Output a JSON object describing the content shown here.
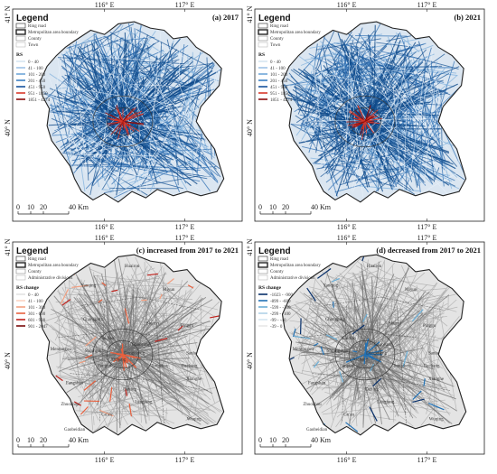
{
  "panels": [
    {
      "id": "a",
      "title": "(a) 2017",
      "style": "blue",
      "legend": {
        "title": "Legend",
        "base": [
          "Ring road",
          "Metropolitan area boundary",
          "County",
          "Town"
        ],
        "class_title": "RS",
        "classes": [
          {
            "label": "0 - 40",
            "color": "#d6e4f0"
          },
          {
            "label": "41 - 100",
            "color": "#9fc3e6"
          },
          {
            "label": "101 - 200",
            "color": "#6fa6d8"
          },
          {
            "label": "201 - 450",
            "color": "#3a7fc2"
          },
          {
            "label": "451 - 950",
            "color": "#17539c"
          },
          {
            "label": "951 - 1850",
            "color": "#d9392b"
          },
          {
            "label": "1851 - 4274",
            "color": "#8b0d0d"
          }
        ]
      },
      "scale": {
        "labels": [
          "0",
          "10",
          "20",
          "40 Km"
        ]
      },
      "lon_ticks": [
        "116° E",
        "117° E"
      ],
      "lat_ticks": [
        "41° N",
        "40° N"
      ],
      "places": []
    },
    {
      "id": "b",
      "title": "(b) 2021",
      "style": "blue",
      "legend": {
        "title": "Legend",
        "base": [
          "Ring road",
          "Metropolitan area boundary",
          "County",
          "Town"
        ],
        "class_title": "RS",
        "classes": [
          {
            "label": "0 - 40",
            "color": "#d6e4f0"
          },
          {
            "label": "41 - 100",
            "color": "#9fc3e6"
          },
          {
            "label": "101 - 200",
            "color": "#6fa6d8"
          },
          {
            "label": "201 - 450",
            "color": "#3a7fc2"
          },
          {
            "label": "451 - 950",
            "color": "#17539c"
          },
          {
            "label": "951 - 1850",
            "color": "#d9392b"
          },
          {
            "label": "1851 - 4274",
            "color": "#8b0d0d"
          }
        ]
      },
      "scale": {
        "labels": [
          "0",
          "10",
          "20",
          "40 Km"
        ]
      },
      "lon_ticks": [
        "116° E",
        "117° E"
      ],
      "lat_ticks": [
        "41° N",
        "40° N"
      ],
      "places": []
    },
    {
      "id": "c",
      "title": "(c) increased from 2017 to 2021",
      "style": "increase",
      "legend": {
        "title": "Legend",
        "base": [
          "Ring road",
          "Metropolitan area boundary",
          "County",
          "Administrative divisions"
        ],
        "class_title": "RS change",
        "classes": [
          {
            "label": "0 - 40",
            "color": "#e3e3e3"
          },
          {
            "label": "41 - 100",
            "color": "#fbd3c2"
          },
          {
            "label": "101 - 300",
            "color": "#f3a182"
          },
          {
            "label": "301 - 600",
            "color": "#e8603e"
          },
          {
            "label": "601 - 900",
            "color": "#c0221c"
          },
          {
            "label": "901 - 2047",
            "color": "#7a0a0a"
          }
        ]
      },
      "scale": {
        "labels": [
          "0",
          "10",
          "20",
          "40 Km"
        ]
      },
      "lon_ticks": [
        "116° E",
        "117° E"
      ],
      "lat_ticks": [
        "41° N",
        "40° N"
      ],
      "places": [
        "Huairou",
        "Yanqing",
        "Miyun",
        "Changping",
        "Pinggu",
        "Shunyi",
        "Haidian",
        "Chaoyang",
        "Mentougou",
        "Shijingshan",
        "Dongcheng",
        "Xicheng",
        "Fengtai",
        "Tongzhou",
        "Sanhe",
        "Dachang",
        "Xianghe",
        "Fangshan",
        "Daxing",
        "Zhuozhou",
        "Gu'an",
        "Langfang",
        "Wuqing",
        "Gaobeidian"
      ]
    },
    {
      "id": "d",
      "title": "(d) decreased from 2017 to 2021",
      "style": "decrease",
      "legend": {
        "title": "Legend",
        "base": [
          "Ring road",
          "Metropolitan area boundary",
          "County",
          "Administrative divisions"
        ],
        "class_title": "RS change",
        "classes": [
          {
            "label": "-1023 - -900",
            "color": "#08306b"
          },
          {
            "label": "-899 - -600",
            "color": "#2171b5"
          },
          {
            "label": "-599 - -300",
            "color": "#6baed6"
          },
          {
            "label": "-299 - -100",
            "color": "#b0d2e8"
          },
          {
            "label": "-99 - -40",
            "color": "#d6e6f2"
          },
          {
            "label": "-39 - 0",
            "color": "#e8e8e8"
          }
        ]
      },
      "scale": {
        "labels": [
          "0",
          "10",
          "20",
          "40 Km"
        ]
      },
      "lon_ticks": [
        "116° E",
        "117° E"
      ],
      "lat_ticks": [
        "41° N",
        "40° N"
      ],
      "places": [
        "Huairou",
        "Yanqing",
        "Miyun",
        "Changping",
        "Pinggu",
        "Shunyi",
        "Haidian",
        "Chaoyang",
        "Mentougou",
        "Shijingshan",
        "Dongcheng",
        "Xicheng",
        "Fengtai",
        "Tongzhou",
        "Sanhe",
        "Dachang",
        "Xianghe",
        "Fangshan",
        "Daxing",
        "Zhuozhou",
        "Gu'an",
        "Langfang",
        "Wuqing",
        "Gaobeidian"
      ]
    }
  ]
}
